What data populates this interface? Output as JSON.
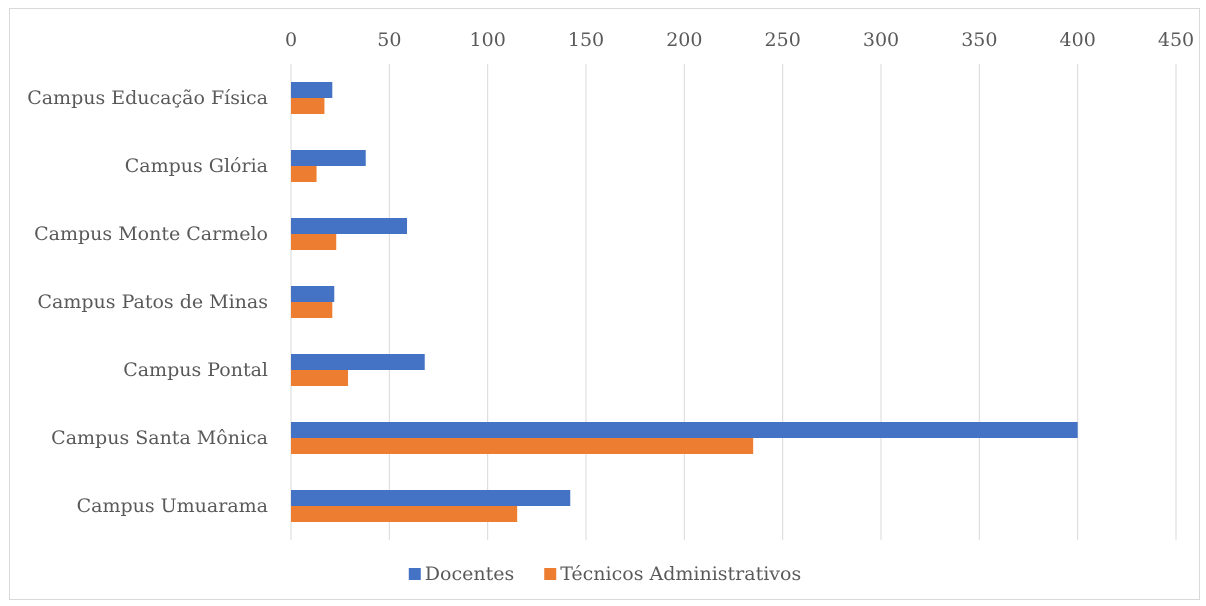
{
  "chart_data": {
    "type": "bar",
    "orientation": "horizontal",
    "categories": [
      "Campus Educação Física",
      "Campus Glória",
      "Campus Monte Carmelo",
      "Campus Patos de Minas",
      "Campus Pontal",
      "Campus Santa Mônica",
      "Campus Umuarama"
    ],
    "series": [
      {
        "name": "Docentes",
        "color": "#4472c4",
        "values": [
          21,
          38,
          59,
          22,
          68,
          400,
          142
        ]
      },
      {
        "name": "Técnicos Administrativos",
        "color": "#ed7d31",
        "values": [
          17,
          13,
          23,
          21,
          29,
          235,
          115
        ]
      }
    ],
    "xlim": [
      0,
      450
    ],
    "xticks": [
      "0",
      "50",
      "100",
      "150",
      "200",
      "250",
      "300",
      "350",
      "400",
      "450"
    ],
    "x_axis_position": "top",
    "grid": true,
    "legend_position": "bottom"
  }
}
